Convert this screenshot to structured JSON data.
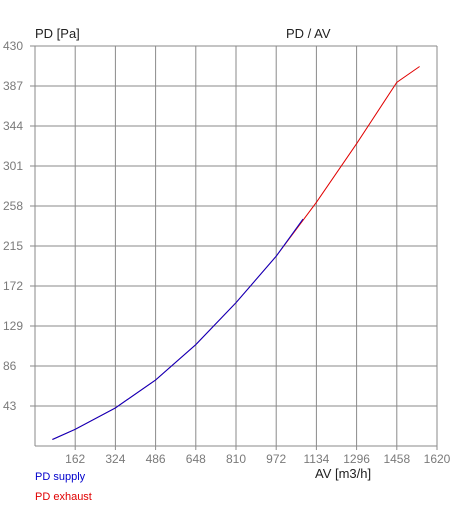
{
  "chart_data": {
    "type": "line",
    "title": "PD / AV",
    "ylabel": "PD [Pa]",
    "xlabel": "AV [m3/h]",
    "xlim": [
      0,
      1620
    ],
    "ylim": [
      0,
      430
    ],
    "xticks": [
      162,
      324,
      486,
      648,
      810,
      972,
      1134,
      1296,
      1458,
      1620
    ],
    "yticks": [
      43,
      86,
      129,
      172,
      215,
      258,
      301,
      344,
      387,
      430
    ],
    "grid": true,
    "series": [
      {
        "name": "PD supply",
        "color": "#0000cc",
        "x": [
          70,
          162,
          324,
          486,
          648,
          810,
          972,
          1080
        ],
        "y": [
          7,
          18,
          41,
          71,
          109,
          154,
          204,
          244
        ]
      },
      {
        "name": "PD exhaust",
        "color": "#e00000",
        "x": [
          70,
          162,
          324,
          486,
          648,
          810,
          972,
          1134,
          1296,
          1458,
          1550
        ],
        "y": [
          7,
          18,
          41,
          71,
          109,
          154,
          204,
          262,
          325,
          391,
          408
        ]
      }
    ]
  }
}
